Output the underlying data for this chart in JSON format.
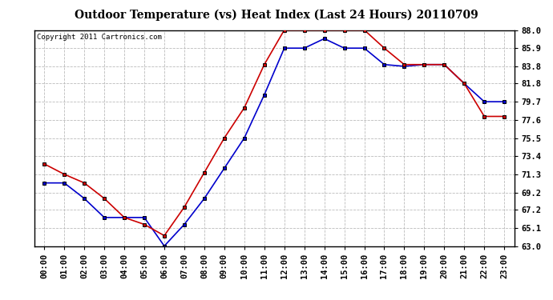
{
  "title": "Outdoor Temperature (vs) Heat Index (Last 24 Hours) 20110709",
  "copyright": "Copyright 2011 Cartronics.com",
  "background_color": "#ffffff",
  "plot_bg_color": "#ffffff",
  "grid_color": "#bbbbbb",
  "x_labels": [
    "00:00",
    "01:00",
    "02:00",
    "03:00",
    "04:00",
    "05:00",
    "06:00",
    "07:00",
    "08:00",
    "09:00",
    "10:00",
    "11:00",
    "12:00",
    "13:00",
    "14:00",
    "15:00",
    "16:00",
    "17:00",
    "18:00",
    "19:00",
    "20:00",
    "21:00",
    "22:00",
    "23:00"
  ],
  "ylim": [
    63.0,
    88.0
  ],
  "yticks": [
    63.0,
    65.1,
    67.2,
    69.2,
    71.3,
    73.4,
    75.5,
    77.6,
    79.7,
    81.8,
    83.8,
    85.9,
    88.0
  ],
  "heat_index": [
    72.5,
    71.3,
    70.3,
    68.5,
    66.3,
    65.5,
    64.2,
    67.5,
    71.5,
    75.5,
    79.0,
    84.0,
    88.0,
    88.0,
    88.0,
    88.0,
    88.0,
    85.9,
    84.0,
    84.0,
    84.0,
    81.8,
    78.0,
    78.0
  ],
  "outdoor_temp": [
    70.3,
    70.3,
    68.5,
    66.3,
    66.3,
    66.3,
    63.0,
    65.5,
    68.5,
    72.0,
    75.5,
    80.5,
    85.9,
    85.9,
    87.0,
    85.9,
    85.9,
    84.0,
    83.8,
    84.0,
    84.0,
    81.8,
    79.7,
    79.7
  ],
  "heat_index_color": "#cc0000",
  "outdoor_temp_color": "#0000cc",
  "marker": "s",
  "marker_size": 3,
  "line_width": 1.2,
  "title_fontsize": 10,
  "tick_fontsize": 7.5,
  "copyright_fontsize": 6.5
}
